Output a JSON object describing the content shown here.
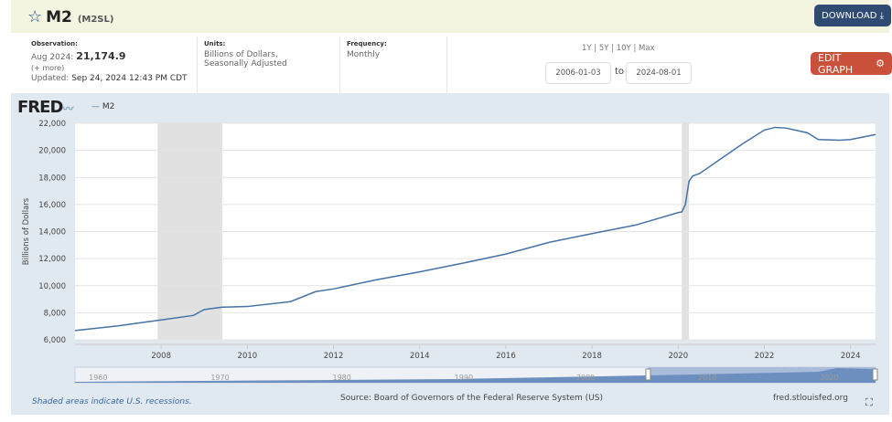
{
  "header": {
    "title": "M2",
    "series_id": "(M2SL)",
    "download_label": "DOWNLOAD",
    "edit_graph_label": "EDIT GRAPH"
  },
  "meta": {
    "observation_label": "Observation:",
    "observation_date": "Aug 2024:",
    "observation_value": "21,174.9",
    "more": "(+ more)",
    "updated_label": "Updated:",
    "updated_value": "Sep 24, 2024 12:43 PM CDT",
    "units_label": "Units:",
    "units_line1": "Billions of Dollars,",
    "units_line2": "Seasonally Adjusted",
    "frequency_label": "Frequency:",
    "frequency_value": "Monthly"
  },
  "range": {
    "options": "1Y | 5Y | 10Y | Max",
    "start": "2006-01-03",
    "to": "to",
    "end": "2024-08-01"
  },
  "footer": {
    "recession_note": "Shaded areas indicate U.S. recessions.",
    "source": "Source: Board of Governors of the Federal Reserve System (US)",
    "site": "fred.stlouisfed.org"
  },
  "colors": {
    "line": "#4572a7",
    "recession": "#e1e1e1",
    "download": "#2f4a73",
    "edit": "#c9503a"
  },
  "chart_data": {
    "type": "line",
    "logo": "FRED",
    "legend": [
      "M2"
    ],
    "ylabel": "Billions of Dollars",
    "ylim": [
      6000,
      22000
    ],
    "xlim": [
      2006.0,
      2024.58
    ],
    "yticks": [
      "6,000",
      "8,000",
      "10,000",
      "12,000",
      "14,000",
      "16,000",
      "18,000",
      "20,000",
      "22,000"
    ],
    "xticks": [
      "2008",
      "2010",
      "2012",
      "2014",
      "2016",
      "2018",
      "2020",
      "2022",
      "2024"
    ],
    "navigator_ticks": [
      "1960",
      "1970",
      "1980",
      "1990",
      "2000",
      "2010",
      "2020"
    ],
    "recessions": [
      [
        "2007-12",
        "2009-06"
      ],
      [
        "2020-02",
        "2020-04"
      ]
    ],
    "series": [
      {
        "name": "M2",
        "x": [
          "2006-01",
          "2007-01",
          "2008-01",
          "2008-10",
          "2009-01",
          "2009-06",
          "2010-01",
          "2011-01",
          "2011-08",
          "2012-01",
          "2013-01",
          "2014-01",
          "2015-01",
          "2016-01",
          "2017-01",
          "2018-01",
          "2019-01",
          "2020-01",
          "2020-02",
          "2020-03",
          "2020-04",
          "2020-05",
          "2020-07",
          "2021-01",
          "2021-07",
          "2022-01",
          "2022-04",
          "2022-07",
          "2023-01",
          "2023-04",
          "2023-10",
          "2024-01",
          "2024-08"
        ],
        "values": [
          6680,
          7030,
          7470,
          7800,
          8240,
          8410,
          8460,
          8820,
          9560,
          9760,
          10440,
          11020,
          11660,
          12340,
          13200,
          13850,
          14470,
          15400,
          15450,
          16000,
          17700,
          18100,
          18300,
          19400,
          20500,
          21500,
          21700,
          21650,
          21300,
          20800,
          20750,
          20800,
          21175
        ]
      }
    ]
  }
}
